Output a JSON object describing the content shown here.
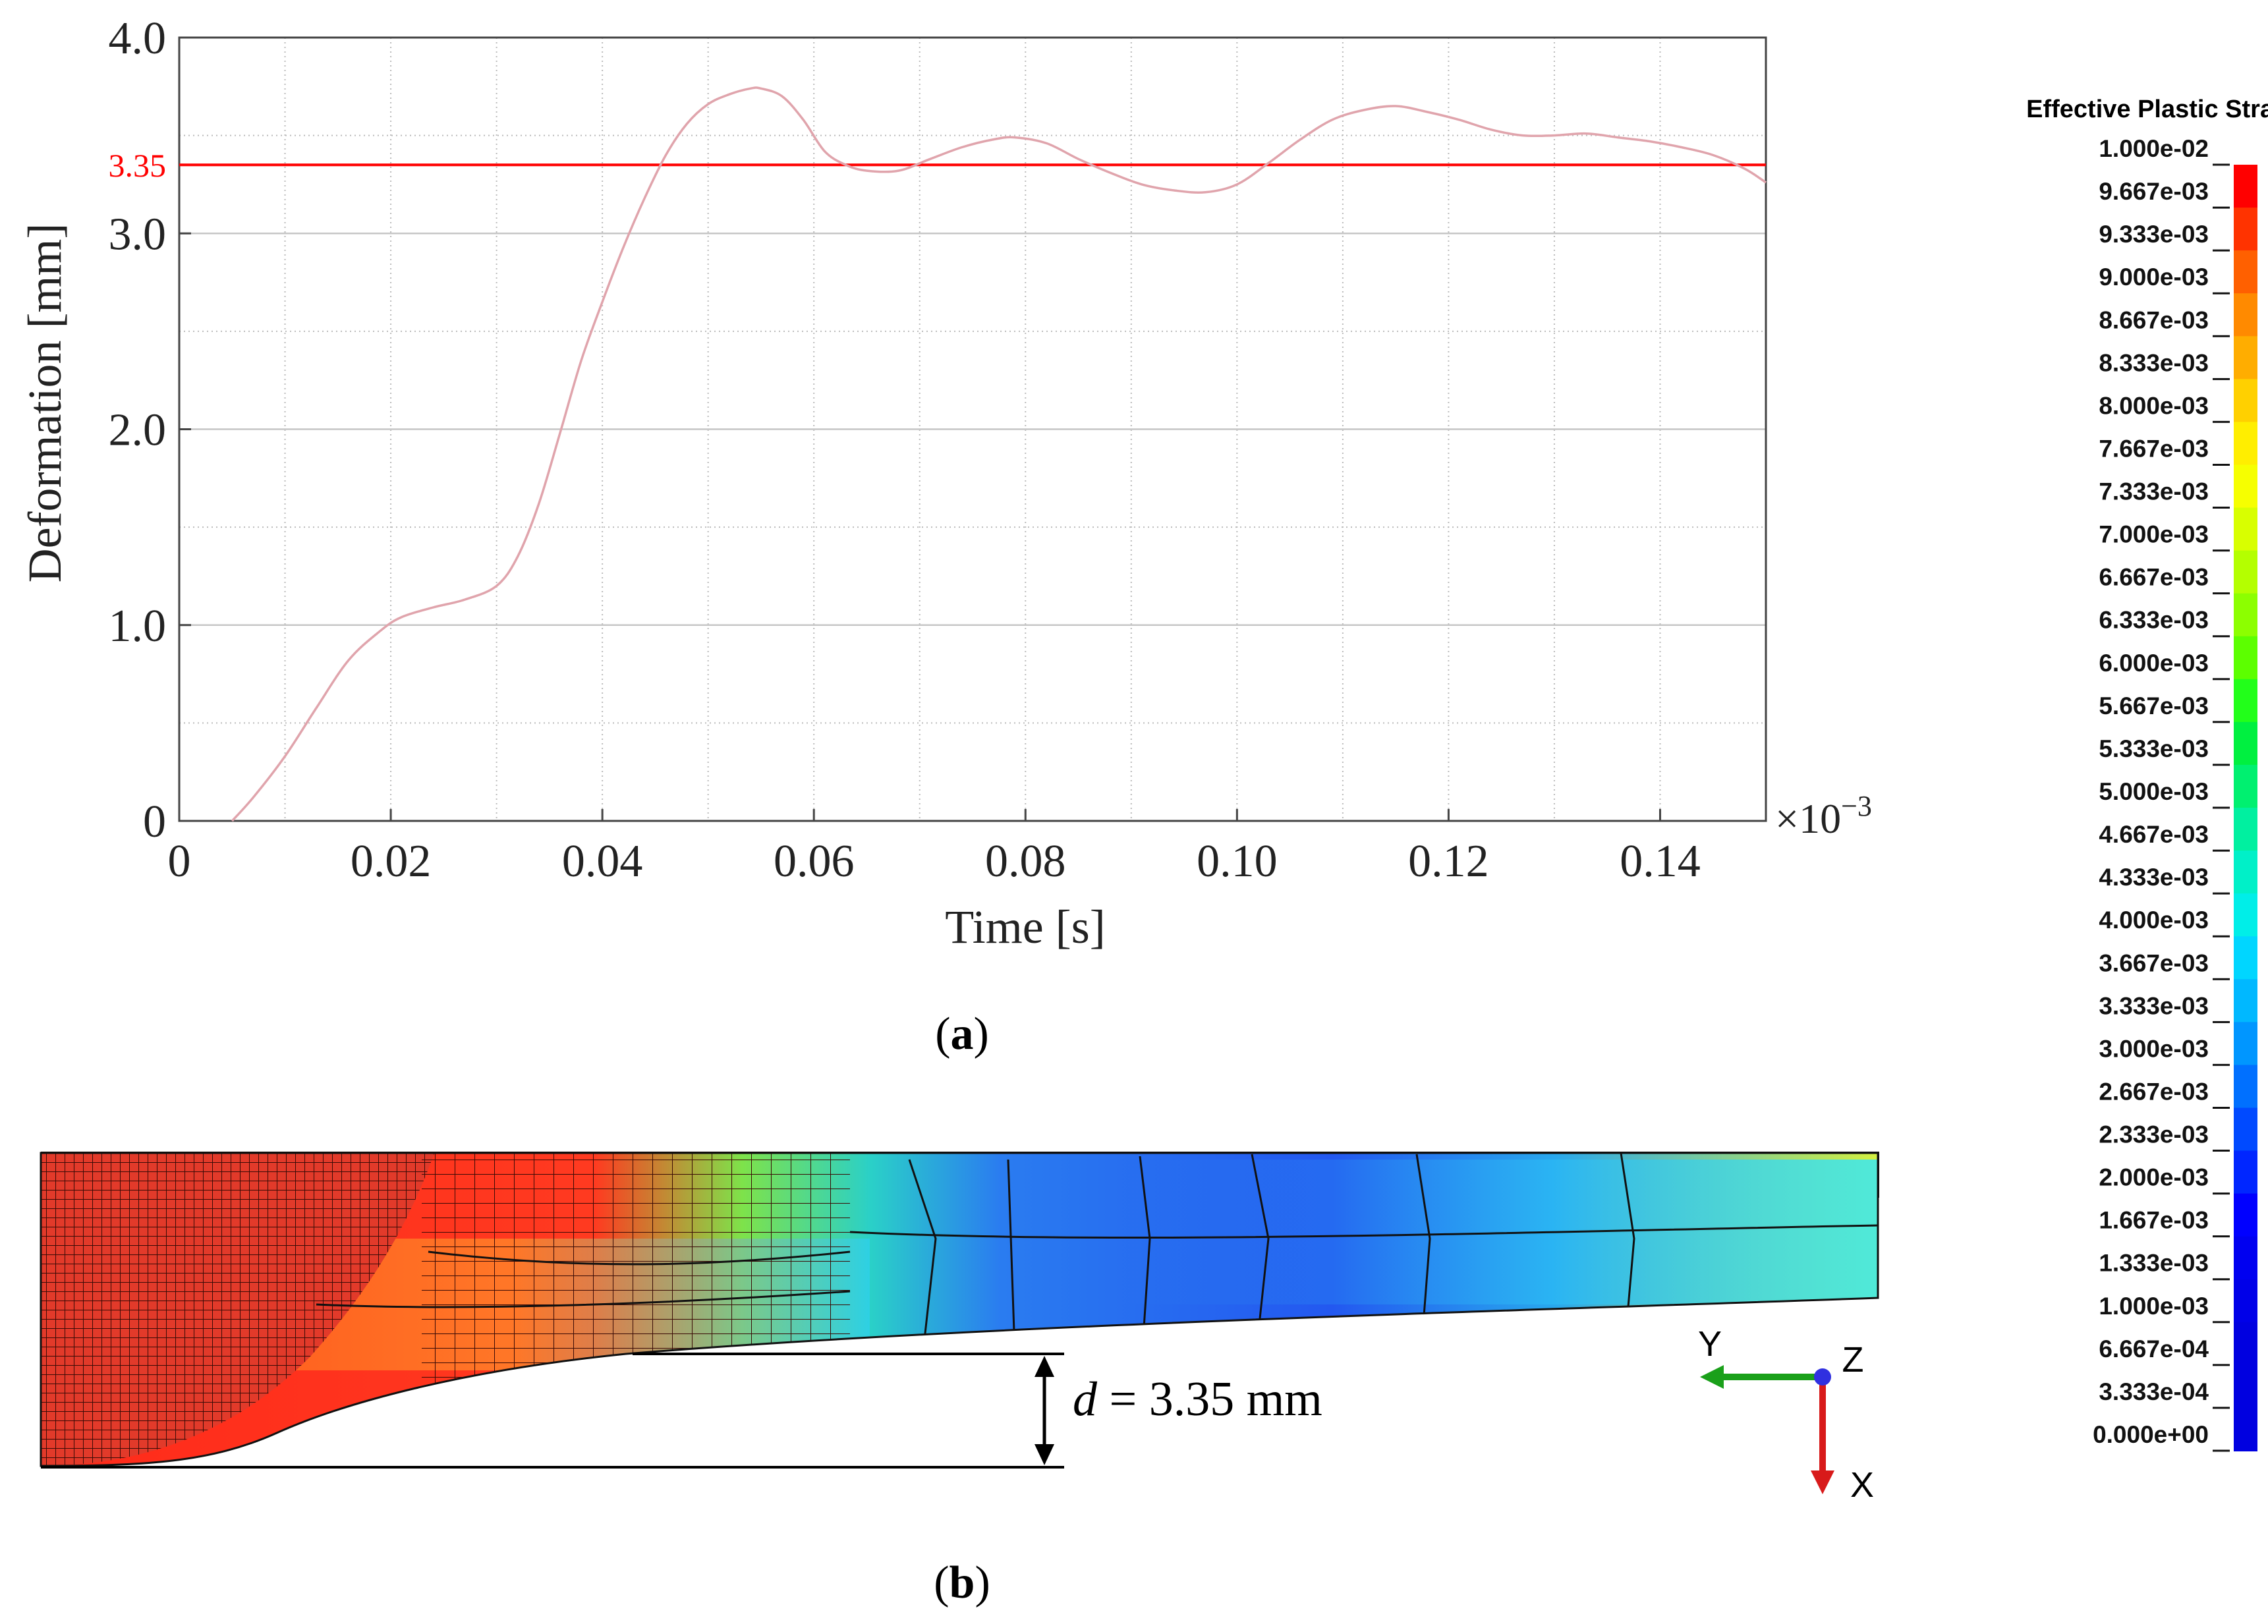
{
  "chart_data": {
    "type": "line",
    "xlabel": "Time [s]",
    "ylabel": "Deformation [mm]",
    "x_multiplier": "×10",
    "x_multiplier_exp": "−3",
    "xlim": [
      0,
      0.15
    ],
    "ylim": [
      0,
      4.0
    ],
    "x_ticks": [
      0,
      0.02,
      0.04,
      0.06,
      0.08,
      0.1,
      0.12,
      0.14
    ],
    "x_tick_labels": [
      "0",
      "0.02",
      "0.04",
      "0.06",
      "0.08",
      "0.10",
      "0.12",
      "0.14"
    ],
    "y_ticks": [
      0,
      1.0,
      2.0,
      3.0,
      4.0
    ],
    "y_tick_labels": [
      "0",
      "1.0",
      "2.0",
      "3.0",
      "4.0"
    ],
    "minor_gridlines": {
      "x_step": 0.01,
      "y_step": 0.5
    },
    "grid": true,
    "reference_line": {
      "value": 3.35,
      "label": "3.35",
      "color": "#ff0000"
    },
    "series": [
      {
        "color": "#e0a4ac",
        "x": [
          0.005,
          0.007,
          0.01,
          0.013,
          0.016,
          0.019,
          0.021,
          0.024,
          0.027,
          0.03,
          0.032,
          0.034,
          0.036,
          0.038,
          0.04,
          0.042,
          0.044,
          0.046,
          0.048,
          0.05,
          0.052,
          0.054,
          0.055,
          0.057,
          0.059,
          0.061,
          0.063,
          0.065,
          0.068,
          0.071,
          0.074,
          0.077,
          0.079,
          0.082,
          0.085,
          0.088,
          0.091,
          0.094,
          0.097,
          0.1,
          0.103,
          0.106,
          0.109,
          0.112,
          0.115,
          0.118,
          0.121,
          0.124,
          0.127,
          0.13,
          0.133,
          0.136,
          0.139,
          0.142,
          0.145,
          0.148,
          0.15
        ],
        "values": [
          0.0,
          0.12,
          0.33,
          0.58,
          0.82,
          0.97,
          1.04,
          1.09,
          1.13,
          1.2,
          1.35,
          1.62,
          1.98,
          2.35,
          2.65,
          2.93,
          3.18,
          3.4,
          3.56,
          3.66,
          3.71,
          3.74,
          3.74,
          3.7,
          3.58,
          3.42,
          3.35,
          3.32,
          3.32,
          3.38,
          3.44,
          3.48,
          3.49,
          3.46,
          3.38,
          3.31,
          3.25,
          3.22,
          3.21,
          3.25,
          3.36,
          3.48,
          3.58,
          3.63,
          3.65,
          3.62,
          3.58,
          3.53,
          3.5,
          3.5,
          3.51,
          3.49,
          3.47,
          3.44,
          3.4,
          3.33,
          3.26
        ]
      }
    ]
  },
  "panel_a_label": "a",
  "panel_b_label": "b",
  "legend": {
    "title": "Effective Plastic Strain",
    "values": [
      "1.000e-02",
      "9.667e-03",
      "9.333e-03",
      "9.000e-03",
      "8.667e-03",
      "8.333e-03",
      "8.000e-03",
      "7.667e-03",
      "7.333e-03",
      "7.000e-03",
      "6.667e-03",
      "6.333e-03",
      "6.000e-03",
      "5.667e-03",
      "5.333e-03",
      "5.000e-03",
      "4.667e-03",
      "4.333e-03",
      "4.000e-03",
      "3.667e-03",
      "3.333e-03",
      "3.000e-03",
      "2.667e-03",
      "2.333e-03",
      "2.000e-03",
      "1.667e-03",
      "1.333e-03",
      "1.000e-03",
      "6.667e-04",
      "3.333e-04",
      "0.000e+00"
    ],
    "colors": [
      "#ff0000",
      "#ff3300",
      "#ff6000",
      "#ff8a00",
      "#ffad00",
      "#ffd000",
      "#ffee00",
      "#f6ff00",
      "#d8ff00",
      "#b4ff00",
      "#8cff00",
      "#5cff00",
      "#22ff1a",
      "#00f040",
      "#00f070",
      "#00f0a0",
      "#00f0c8",
      "#00eee8",
      "#00d6ff",
      "#00b8ff",
      "#0096ff",
      "#0070ff",
      "#004aff",
      "#0026ff",
      "#0000ff",
      "#0000f0",
      "#0000e8",
      "#0000e0",
      "#0000e0",
      "#0000e0"
    ]
  },
  "simulation": {
    "dimension_symbol": "d",
    "dimension_text": " = 3.35 mm",
    "axes": {
      "y": "Y",
      "z": "Z",
      "x": "X"
    }
  }
}
